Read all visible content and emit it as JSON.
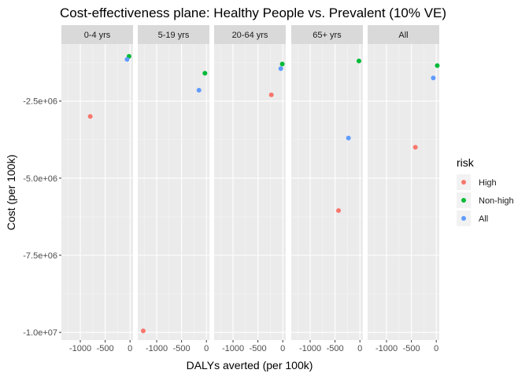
{
  "chart_data": {
    "type": "scatter",
    "title": "Cost-effectiveness plane: Healthy People vs. Prevalent (10% VE)",
    "xlabel": "DALYs averted (per 100k)",
    "ylabel": "Cost (per 100k)",
    "xlim": [
      -1380,
      60
    ],
    "ylim": [
      -10250000,
      -650000
    ],
    "x_ticks": [
      -1000,
      -500,
      0
    ],
    "x_tick_labels": [
      "-1000",
      "-500",
      "0"
    ],
    "y_ticks": [
      -2500000,
      -5000000,
      -7500000,
      -10000000
    ],
    "y_tick_labels": [
      "-2.5e+06",
      "-5.0e+06",
      "-7.5e+06",
      "-1.0e+07"
    ],
    "grid": true,
    "legend": {
      "title": "risk",
      "position": "right",
      "entries": [
        {
          "label": "High",
          "color": "#F8766D"
        },
        {
          "label": "Non-high",
          "color": "#00BA38"
        },
        {
          "label": "All",
          "color": "#619CFF"
        }
      ]
    },
    "facets": [
      "0-4 yrs",
      "5-19 yrs",
      "20-64 yrs",
      "65+ yrs",
      "All"
    ],
    "series": [
      {
        "name": "High",
        "color": "#F8766D",
        "points": [
          {
            "facet": "0-4 yrs",
            "x": -800,
            "y": -3000000
          },
          {
            "facet": "5-19 yrs",
            "x": -1270,
            "y": -9950000
          },
          {
            "facet": "20-64 yrs",
            "x": -230,
            "y": -2300000
          },
          {
            "facet": "65+ yrs",
            "x": -430,
            "y": -6050000
          },
          {
            "facet": "All",
            "x": -420,
            "y": -4000000
          }
        ]
      },
      {
        "name": "Non-high",
        "color": "#00BA38",
        "points": [
          {
            "facet": "0-4 yrs",
            "x": -20,
            "y": -1050000
          },
          {
            "facet": "5-19 yrs",
            "x": -30,
            "y": -1600000
          },
          {
            "facet": "20-64 yrs",
            "x": -10,
            "y": -1300000
          },
          {
            "facet": "65+ yrs",
            "x": -20,
            "y": -1200000
          },
          {
            "facet": "All",
            "x": 20,
            "y": -1350000
          }
        ]
      },
      {
        "name": "All",
        "color": "#619CFF",
        "points": [
          {
            "facet": "0-4 yrs",
            "x": -60,
            "y": -1150000
          },
          {
            "facet": "5-19 yrs",
            "x": -150,
            "y": -2150000
          },
          {
            "facet": "20-64 yrs",
            "x": -40,
            "y": -1450000
          },
          {
            "facet": "65+ yrs",
            "x": -230,
            "y": -3700000
          },
          {
            "facet": "All",
            "x": -60,
            "y": -1750000
          }
        ]
      }
    ]
  }
}
